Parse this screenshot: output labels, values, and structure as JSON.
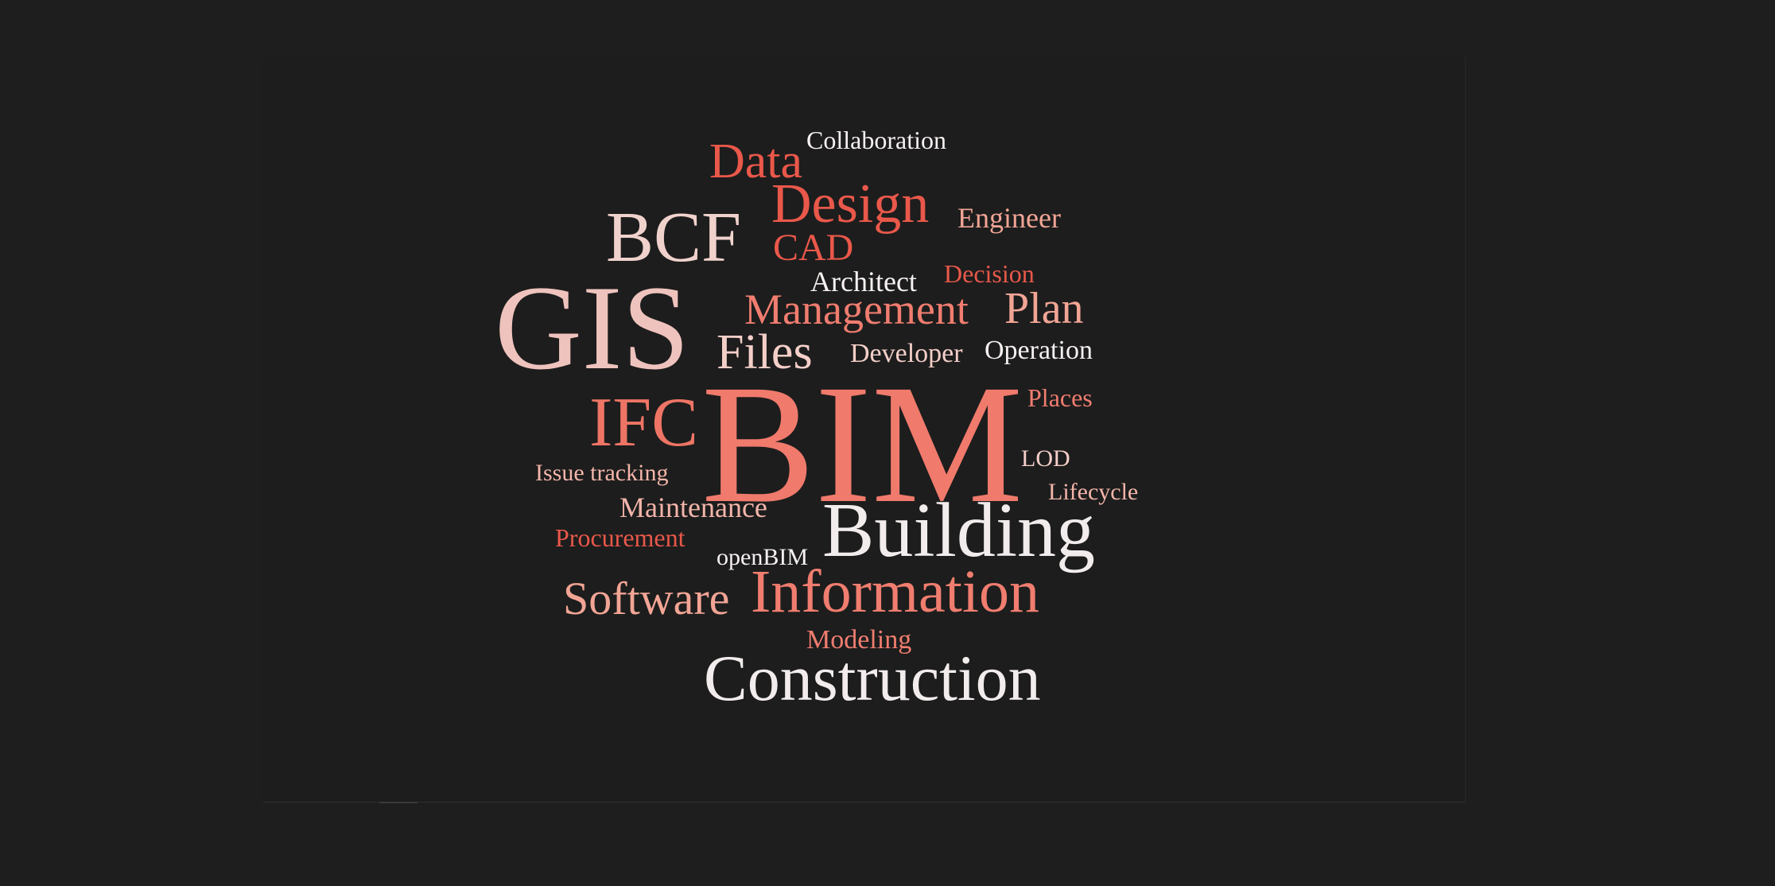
{
  "palette": {
    "background": "#1e1e1e",
    "white": "#f2ecec",
    "pale_pink": "#efc3bd",
    "light_salmon": "#f2a595",
    "salmon": "#ef7a6b",
    "red": "#e85a4c"
  },
  "word_cloud": {
    "words": [
      {
        "text": "BIM",
        "color": "#f07a6c"
      },
      {
        "text": "GIS",
        "color": "#efc3bd"
      },
      {
        "text": "BCF",
        "color": "#f0d2cc"
      },
      {
        "text": "Building",
        "color": "#f2ecec"
      },
      {
        "text": "Construction",
        "color": "#f2ecec"
      },
      {
        "text": "Information",
        "color": "#f07d6f"
      },
      {
        "text": "IFC",
        "color": "#ee7565"
      },
      {
        "text": "Design",
        "color": "#e9584a"
      },
      {
        "text": "Data",
        "color": "#e9584a"
      },
      {
        "text": "Management",
        "color": "#f07d6f"
      },
      {
        "text": "Files",
        "color": "#f4cfc8"
      },
      {
        "text": "Plan",
        "color": "#f2a595"
      },
      {
        "text": "Software",
        "color": "#f2a595"
      },
      {
        "text": "CAD",
        "color": "#e9584a"
      },
      {
        "text": "Collaboration",
        "color": "#f7f1f1"
      },
      {
        "text": "Engineer",
        "color": "#f2a595"
      },
      {
        "text": "Architect",
        "color": "#f7f1f1"
      },
      {
        "text": "Decision",
        "color": "#e9584a"
      },
      {
        "text": "Developer",
        "color": "#f4cfc8"
      },
      {
        "text": "Operation",
        "color": "#f7f1f1"
      },
      {
        "text": "Places",
        "color": "#f07d6f"
      },
      {
        "text": "LOD",
        "color": "#f4cfc8"
      },
      {
        "text": "Lifecycle",
        "color": "#f4b5aa"
      },
      {
        "text": "Issue tracking",
        "color": "#f4b5aa"
      },
      {
        "text": "Maintenance",
        "color": "#f4b5aa"
      },
      {
        "text": "Procurement",
        "color": "#e9584a"
      },
      {
        "text": "openBIM",
        "color": "#f7f1f1"
      },
      {
        "text": "Modeling",
        "color": "#f07d6f"
      }
    ]
  }
}
